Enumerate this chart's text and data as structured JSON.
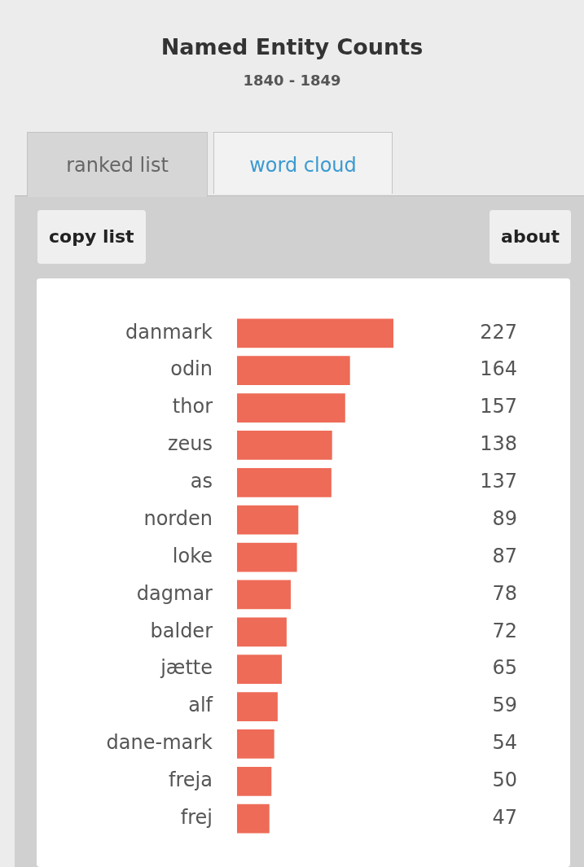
{
  "chart_data": {
    "type": "bar",
    "orientation": "horizontal",
    "title": "Named Entity Counts",
    "subtitle": "1840 - 1849",
    "annotations": [
      "ranked list",
      "word cloud",
      "copy list",
      "about"
    ],
    "categories": [
      "danmark",
      "odin",
      "thor",
      "zeus",
      "as",
      "norden",
      "loke",
      "dagmar",
      "balder",
      "jætte",
      "alf",
      "dane-mark",
      "freja",
      "frej"
    ],
    "values": [
      227,
      164,
      157,
      138,
      137,
      89,
      87,
      78,
      72,
      65,
      59,
      54,
      50,
      47
    ],
    "color": "#ee6b57",
    "data_labels": true,
    "tick_labels": "y"
  }
}
